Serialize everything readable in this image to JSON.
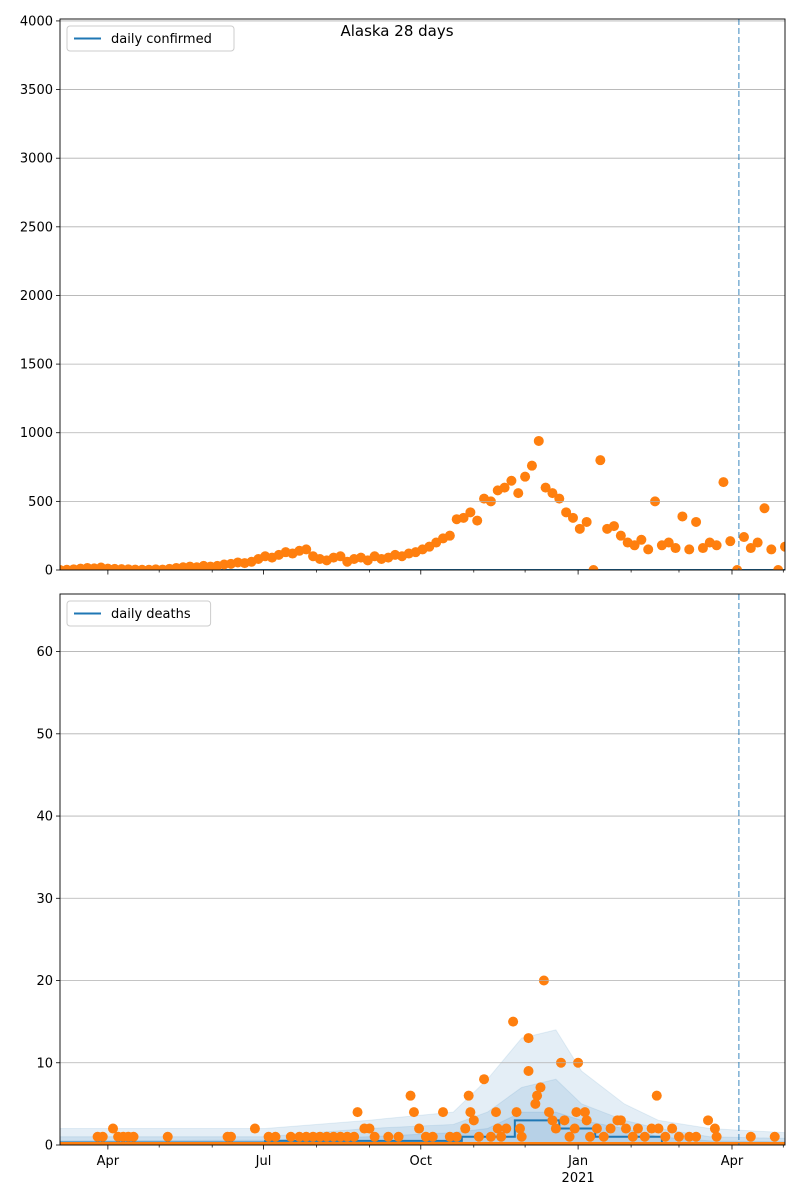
{
  "title": "Alaska 28 days",
  "chart_data": [
    {
      "type": "scatter",
      "name": "confirmed",
      "legend": "daily confirmed",
      "legend_placement": "upper-left",
      "start_date": "2020-03-04",
      "x_unit": "days since start_date",
      "xlim": [
        0,
        424
      ],
      "ylim": [
        0,
        4014
      ],
      "yticks": [
        0,
        500,
        1000,
        1500,
        2000,
        2500,
        3000,
        3500,
        4000
      ],
      "grid": true,
      "vline_day": 397,
      "sample_step_days": 4,
      "observed": [
        0,
        2,
        5,
        10,
        15,
        12,
        18,
        10,
        8,
        6,
        5,
        3,
        2,
        2,
        5,
        3,
        8,
        15,
        20,
        25,
        20,
        30,
        25,
        30,
        40,
        45,
        55,
        50,
        60,
        80,
        100,
        90,
        110,
        130,
        120,
        140,
        150,
        100,
        80,
        70,
        90,
        100,
        60,
        80,
        90,
        70,
        100,
        80,
        90,
        110,
        100,
        120,
        130,
        150,
        170,
        200,
        230,
        250,
        370,
        380,
        420,
        360,
        520,
        500,
        580,
        600,
        650,
        560,
        680,
        760,
        940,
        600,
        560,
        520,
        420,
        380,
        300,
        350,
        0,
        800,
        300,
        320,
        250,
        200,
        180,
        220,
        150,
        500,
        180,
        200,
        160,
        390,
        150,
        350,
        160,
        200,
        180,
        640,
        210,
        0,
        240,
        160,
        200,
        450,
        150,
        0,
        170
      ],
      "model": [
        [
          0,
          0
        ],
        [
          424,
          0
        ]
      ]
    },
    {
      "type": "scatter",
      "name": "deaths",
      "legend": "daily deaths",
      "legend_placement": "upper-left",
      "start_date": "2020-03-04",
      "xlim": [
        0,
        424
      ],
      "ylim": [
        0,
        67
      ],
      "yticks": [
        0,
        10,
        20,
        30,
        40,
        50,
        60
      ],
      "grid": true,
      "vline_day": 397,
      "observed_nonzero": [
        [
          22,
          1
        ],
        [
          25,
          1
        ],
        [
          31,
          2
        ],
        [
          34,
          1
        ],
        [
          37,
          1
        ],
        [
          40,
          1
        ],
        [
          43,
          1
        ],
        [
          63,
          1
        ],
        [
          98,
          1
        ],
        [
          100,
          1
        ],
        [
          114,
          2
        ],
        [
          122,
          1
        ],
        [
          126,
          1
        ],
        [
          135,
          1
        ],
        [
          140,
          1
        ],
        [
          144,
          1
        ],
        [
          148,
          1
        ],
        [
          152,
          1
        ],
        [
          156,
          1
        ],
        [
          160,
          1
        ],
        [
          164,
          1
        ],
        [
          168,
          1
        ],
        [
          172,
          1
        ],
        [
          174,
          4
        ],
        [
          178,
          2
        ],
        [
          181,
          2
        ],
        [
          184,
          1
        ],
        [
          192,
          1
        ],
        [
          198,
          1
        ],
        [
          205,
          6
        ],
        [
          207,
          4
        ],
        [
          210,
          2
        ],
        [
          214,
          1
        ],
        [
          218,
          1
        ],
        [
          224,
          4
        ],
        [
          228,
          1
        ],
        [
          232,
          1
        ],
        [
          237,
          2
        ],
        [
          239,
          6
        ],
        [
          240,
          4
        ],
        [
          242,
          3
        ],
        [
          245,
          1
        ],
        [
          248,
          8
        ],
        [
          252,
          1
        ],
        [
          255,
          4
        ],
        [
          256,
          2
        ],
        [
          258,
          1
        ],
        [
          261,
          2
        ],
        [
          265,
          15
        ],
        [
          267,
          4
        ],
        [
          269,
          2
        ],
        [
          270,
          1
        ],
        [
          274,
          13
        ],
        [
          274,
          9
        ],
        [
          278,
          5
        ],
        [
          279,
          6
        ],
        [
          281,
          7
        ],
        [
          283,
          20
        ],
        [
          286,
          4
        ],
        [
          288,
          3
        ],
        [
          290,
          2
        ],
        [
          293,
          10
        ],
        [
          295,
          3
        ],
        [
          298,
          1
        ],
        [
          301,
          2
        ],
        [
          303,
          10
        ],
        [
          302,
          4
        ],
        [
          307,
          4
        ],
        [
          308,
          3
        ],
        [
          310,
          1
        ],
        [
          314,
          2
        ],
        [
          318,
          1
        ],
        [
          322,
          2
        ],
        [
          326,
          3
        ],
        [
          328,
          3
        ],
        [
          331,
          2
        ],
        [
          335,
          1
        ],
        [
          338,
          2
        ],
        [
          342,
          1
        ],
        [
          346,
          2
        ],
        [
          349,
          6
        ],
        [
          350,
          2
        ],
        [
          354,
          1
        ],
        [
          358,
          2
        ],
        [
          362,
          1
        ],
        [
          368,
          1
        ],
        [
          372,
          1
        ],
        [
          379,
          3
        ],
        [
          383,
          2
        ],
        [
          384,
          1
        ],
        [
          404,
          1
        ],
        [
          418,
          1
        ]
      ],
      "model": [
        [
          0,
          0.3
        ],
        [
          120,
          0.3
        ],
        [
          120,
          0.5
        ],
        [
          235,
          0.5
        ],
        [
          235,
          1
        ],
        [
          266,
          1
        ],
        [
          266,
          3
        ],
        [
          292,
          3
        ],
        [
          292,
          2
        ],
        [
          313,
          2
        ],
        [
          313,
          1
        ],
        [
          352,
          1
        ],
        [
          352,
          0
        ],
        [
          424,
          0
        ]
      ],
      "bands": {
        "days": [
          0,
          120,
          180,
          230,
          250,
          270,
          290,
          305,
          330,
          350,
          380,
          424
        ],
        "outer": [
          2,
          2,
          3,
          4,
          8,
          13,
          14,
          9,
          5,
          3,
          2,
          1.5
        ],
        "mid": [
          1,
          1,
          2,
          2.5,
          4,
          7,
          8,
          5,
          3,
          2,
          1,
          0.8
        ],
        "inner": [
          0.5,
          0.6,
          1,
          1.5,
          2,
          4,
          4,
          3,
          2,
          1,
          0.5,
          0.4
        ]
      }
    }
  ],
  "x_axis": {
    "major_ticks": [
      {
        "day": 28,
        "label": "Apr"
      },
      {
        "day": 119,
        "label": "Jul"
      },
      {
        "day": 211,
        "label": "Oct"
      },
      {
        "day": 303,
        "label": "Jan",
        "sublabel": "2021"
      },
      {
        "day": 393,
        "label": "Apr"
      }
    ],
    "minor_tick_days": [
      58,
      89,
      150,
      181,
      242,
      272,
      334,
      362,
      423
    ]
  },
  "colors": {
    "observed": "#ff7f0e",
    "model": "#1f77b4",
    "band": "#1f77b4",
    "grid": "#b0b0b0",
    "vline": "#1f77b4"
  }
}
